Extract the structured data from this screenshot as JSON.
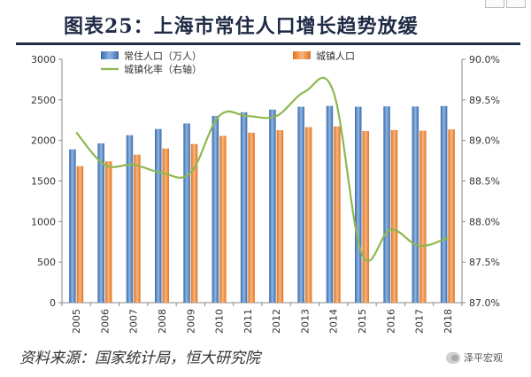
{
  "page": {
    "title": "图表25：上海市常住人口增长趋势放缓",
    "source": "资料来源：国家统计局，恒大研究院",
    "watermark": "泽平宏观"
  },
  "colors": {
    "resident": "#4a7fc1",
    "urban": "#f0883a",
    "rate": "#8db84f",
    "title": "#1f2a44"
  },
  "chart_data": {
    "type": "bar",
    "categories": [
      "2005",
      "2006",
      "2007",
      "2008",
      "2009",
      "2010",
      "2011",
      "2012",
      "2013",
      "2014",
      "2015",
      "2016",
      "2017",
      "2018"
    ],
    "series": [
      {
        "name": "常住人口（万人）",
        "kind": "bar",
        "axis": "left",
        "values": [
          1890,
          1964,
          2064,
          2141,
          2210,
          2303,
          2347,
          2380,
          2415,
          2426,
          2415,
          2420,
          2418,
          2424
        ]
      },
      {
        "name": "城镇人口",
        "kind": "bar",
        "axis": "left",
        "values": [
          1683,
          1742,
          1825,
          1900,
          1956,
          2056,
          2096,
          2126,
          2164,
          2173,
          2116,
          2127,
          2121,
          2136
        ]
      },
      {
        "name": "城镇化率（右轴）",
        "kind": "line",
        "axis": "right",
        "values": [
          89.1,
          88.7,
          88.7,
          88.6,
          88.6,
          89.3,
          89.3,
          89.3,
          89.6,
          89.6,
          87.6,
          87.9,
          87.7,
          87.8
        ]
      }
    ],
    "yLeft": {
      "min": 0,
      "max": 3000,
      "ticks": [
        "0",
        "500",
        "1000",
        "1500",
        "2000",
        "2500",
        "3000"
      ]
    },
    "yRight": {
      "min": 87.0,
      "max": 90.0,
      "ticks": [
        "87.0%",
        "87.5%",
        "88.0%",
        "88.5%",
        "89.0%",
        "89.5%",
        "90.0%"
      ]
    },
    "legend": "top"
  }
}
